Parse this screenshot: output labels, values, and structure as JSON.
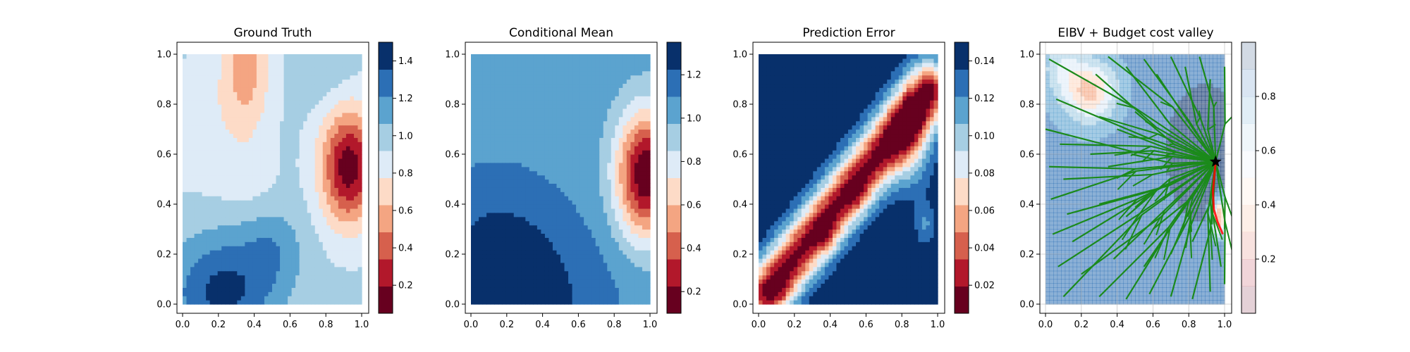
{
  "chart_data": [
    {
      "type": "heatmap",
      "title": "Ground Truth",
      "xlim": [
        0.0,
        1.0
      ],
      "ylim": [
        0.0,
        1.0
      ],
      "xticks": [
        "0.0",
        "0.2",
        "0.4",
        "0.6",
        "0.8",
        "1.0"
      ],
      "yticks": [
        "0.0",
        "0.2",
        "0.4",
        "0.6",
        "0.8",
        "1.0"
      ],
      "colormap": "RdBu",
      "colorbar": {
        "min": 0.05,
        "max": 1.5,
        "ticks": [
          "0.2",
          "0.4",
          "0.6",
          "0.8",
          "1.0",
          "1.2",
          "1.4"
        ]
      },
      "field": {
        "base": 0.95,
        "bumps": [
          {
            "x": 0.93,
            "y": 0.55,
            "sx": 0.11,
            "sy": 0.16,
            "a": -0.85
          },
          {
            "x": 0.35,
            "y": 0.95,
            "sx": 0.1,
            "sy": 0.2,
            "a": -0.4
          },
          {
            "x": 0.22,
            "y": 0.05,
            "sx": 0.2,
            "sy": 0.16,
            "a": 0.45
          },
          {
            "x": 0.5,
            "y": 0.22,
            "sx": 0.12,
            "sy": 0.12,
            "a": 0.2
          },
          {
            "x": 0.05,
            "y": 0.7,
            "sx": 0.14,
            "sy": 0.16,
            "a": -0.15
          },
          {
            "x": 0.35,
            "y": 0.5,
            "sx": 0.12,
            "sy": 0.1,
            "a": -0.1
          },
          {
            "x": 0.8,
            "y": 0.95,
            "sx": 0.1,
            "sy": 0.1,
            "a": 0.1
          }
        ]
      }
    },
    {
      "type": "heatmap",
      "title": "Conditional Mean",
      "xlim": [
        0.0,
        1.0
      ],
      "ylim": [
        0.0,
        1.0
      ],
      "xticks": [
        "0.0",
        "0.2",
        "0.4",
        "0.6",
        "0.8",
        "1.0"
      ],
      "yticks": [
        "0.0",
        "0.2",
        "0.4",
        "0.6",
        "0.8",
        "1.0"
      ],
      "colormap": "RdBu",
      "colorbar": {
        "min": 0.1,
        "max": 1.35,
        "ticks": [
          "0.2",
          "0.4",
          "0.6",
          "0.8",
          "1.0",
          "1.2"
        ]
      },
      "field": {
        "base": 1.05,
        "bumps": [
          {
            "x": 0.98,
            "y": 0.52,
            "sx": 0.12,
            "sy": 0.18,
            "a": -0.95
          },
          {
            "x": 0.15,
            "y": 0.1,
            "sx": 0.25,
            "sy": 0.25,
            "a": 0.3
          },
          {
            "x": 0.55,
            "y": 0.02,
            "sx": 0.25,
            "sy": 0.2,
            "a": 0.1
          }
        ]
      }
    },
    {
      "type": "heatmap",
      "title": "Prediction Error",
      "xlim": [
        0.0,
        1.0
      ],
      "ylim": [
        0.0,
        1.0
      ],
      "xticks": [
        "0.0",
        "0.2",
        "0.4",
        "0.6",
        "0.8",
        "1.0"
      ],
      "yticks": [
        "0.0",
        "0.2",
        "0.4",
        "0.6",
        "0.8",
        "1.0"
      ],
      "colormap": "RdBu",
      "colorbar": {
        "min": 0.005,
        "max": 0.15,
        "ticks": [
          "0.02",
          "0.04",
          "0.06",
          "0.08",
          "0.10",
          "0.12",
          "0.14"
        ]
      },
      "field": {
        "base": 0.15,
        "ridge": {
          "x0": 0.05,
          "y0": 0.05,
          "x1": 0.95,
          "y1": 0.85,
          "width": 0.085,
          "depth": 0.135
        },
        "bumps": [
          {
            "x": 0.85,
            "y": 0.65,
            "sx": 0.09,
            "sy": 0.14,
            "a": -0.05
          },
          {
            "x": 0.12,
            "y": 0.06,
            "sx": 0.05,
            "sy": 0.05,
            "a": -0.02
          },
          {
            "x": 0.38,
            "y": 0.28,
            "sx": 0.05,
            "sy": 0.05,
            "a": -0.02
          },
          {
            "x": 0.55,
            "y": 0.43,
            "sx": 0.05,
            "sy": 0.05,
            "a": -0.02
          },
          {
            "x": 0.93,
            "y": 0.32,
            "sx": 0.04,
            "sy": 0.06,
            "a": -0.03
          }
        ]
      }
    },
    {
      "type": "heatmap",
      "title": "EIBV + Budget cost valley",
      "xlim": [
        0.0,
        1.0
      ],
      "ylim": [
        0.0,
        1.0
      ],
      "xticks": [
        "0.0",
        "0.2",
        "0.4",
        "0.6",
        "0.8",
        "1.0"
      ],
      "yticks": [
        "0.0",
        "0.2",
        "0.4",
        "0.6",
        "0.8",
        "1.0"
      ],
      "grid": true,
      "colormap": "RdBu",
      "colorbar": {
        "min": 0.0,
        "max": 1.0,
        "ticks": [
          "0.2",
          "0.4",
          "0.6",
          "0.8"
        ]
      },
      "field": {
        "base": 0.82,
        "bumps": [
          {
            "x": 0.25,
            "y": 0.85,
            "sx": 0.1,
            "sy": 0.08,
            "a": -0.45
          },
          {
            "x": 0.1,
            "y": 0.95,
            "sx": 0.08,
            "sy": 0.08,
            "a": -0.2
          },
          {
            "x": 0.97,
            "y": 0.35,
            "sx": 0.03,
            "sy": 0.05,
            "a": -0.6
          },
          {
            "x": 0.9,
            "y": 0.6,
            "sx": 0.2,
            "sy": 0.25,
            "a": 0.15
          }
        ]
      },
      "tree": {
        "color": "#1b8a1b",
        "origin": [
          0.95,
          0.57
        ],
        "endpoints": [
          [
            0.02,
            0.98
          ],
          [
            0.06,
            0.82
          ],
          [
            0.0,
            0.7
          ],
          [
            0.08,
            0.64
          ],
          [
            0.02,
            0.55
          ],
          [
            0.1,
            0.5
          ],
          [
            0.03,
            0.42
          ],
          [
            0.12,
            0.36
          ],
          [
            0.04,
            0.28
          ],
          [
            0.15,
            0.25
          ],
          [
            0.07,
            0.15
          ],
          [
            0.2,
            0.12
          ],
          [
            0.1,
            0.03
          ],
          [
            0.3,
            0.03
          ],
          [
            0.45,
            0.02
          ],
          [
            0.58,
            0.04
          ],
          [
            0.7,
            0.03
          ],
          [
            0.82,
            0.02
          ],
          [
            0.92,
            0.05
          ],
          [
            1.0,
            0.08
          ],
          [
            0.28,
            0.92
          ],
          [
            0.35,
            0.99
          ],
          [
            0.45,
            0.95
          ],
          [
            0.55,
            0.98
          ],
          [
            0.62,
            0.92
          ],
          [
            0.7,
            0.99
          ],
          [
            0.78,
            0.95
          ],
          [
            0.86,
            0.99
          ],
          [
            0.92,
            0.9
          ],
          [
            1.0,
            0.95
          ],
          [
            0.3,
            0.75
          ],
          [
            0.4,
            0.7
          ],
          [
            0.5,
            0.77
          ],
          [
            0.35,
            0.55
          ],
          [
            0.48,
            0.6
          ],
          [
            0.3,
            0.4
          ],
          [
            0.45,
            0.35
          ],
          [
            0.6,
            0.3
          ],
          [
            0.38,
            0.18
          ],
          [
            0.55,
            0.15
          ],
          [
            0.7,
            0.2
          ],
          [
            0.82,
            0.25
          ],
          [
            0.25,
            0.6
          ],
          [
            1.0,
            0.3
          ],
          [
            0.98,
            0.15
          ]
        ]
      },
      "path": {
        "color": "#ff0000",
        "points": [
          [
            0.95,
            0.57
          ],
          [
            0.935,
            0.45
          ],
          [
            0.94,
            0.38
          ],
          [
            0.96,
            0.33
          ],
          [
            0.99,
            0.28
          ]
        ]
      },
      "marker": {
        "symbol": "star",
        "x": 0.95,
        "y": 0.57,
        "color": "#000000"
      }
    }
  ]
}
